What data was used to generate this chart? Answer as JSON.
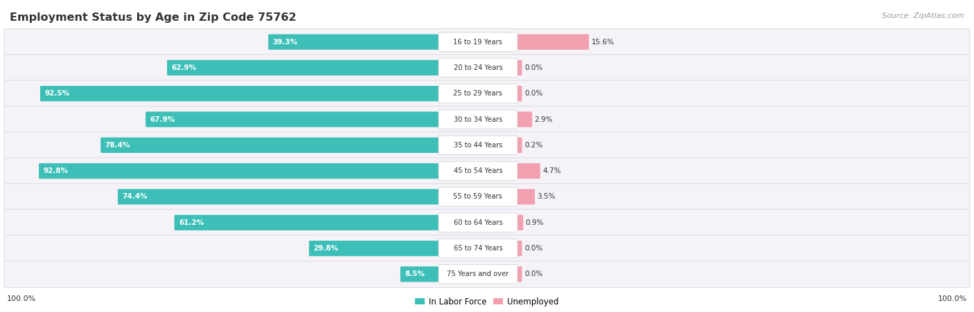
{
  "title": "Employment Status by Age in Zip Code 75762",
  "source": "Source: ZipAtlas.com",
  "categories": [
    "16 to 19 Years",
    "20 to 24 Years",
    "25 to 29 Years",
    "30 to 34 Years",
    "35 to 44 Years",
    "45 to 54 Years",
    "55 to 59 Years",
    "60 to 64 Years",
    "65 to 74 Years",
    "75 Years and over"
  ],
  "labor_force": [
    39.3,
    62.9,
    92.5,
    67.9,
    78.4,
    92.8,
    74.4,
    61.2,
    29.8,
    8.5
  ],
  "unemployed": [
    15.6,
    0.0,
    0.0,
    2.9,
    0.2,
    4.7,
    3.5,
    0.9,
    0.0,
    0.0
  ],
  "labor_force_color": "#3dbfb8",
  "unemployed_color": "#f2a0b0",
  "row_bg_odd": "#f0eef5",
  "row_bg_even": "#f7f5fb",
  "label_color": "#333333",
  "title_color": "#333333",
  "source_color": "#999999",
  "axis_label": "100.0%",
  "legend_labor": "In Labor Force",
  "legend_unemployed": "Unemployed",
  "max_value": 100.0,
  "fig_width": 14.06,
  "fig_height": 4.51,
  "dpi": 100
}
